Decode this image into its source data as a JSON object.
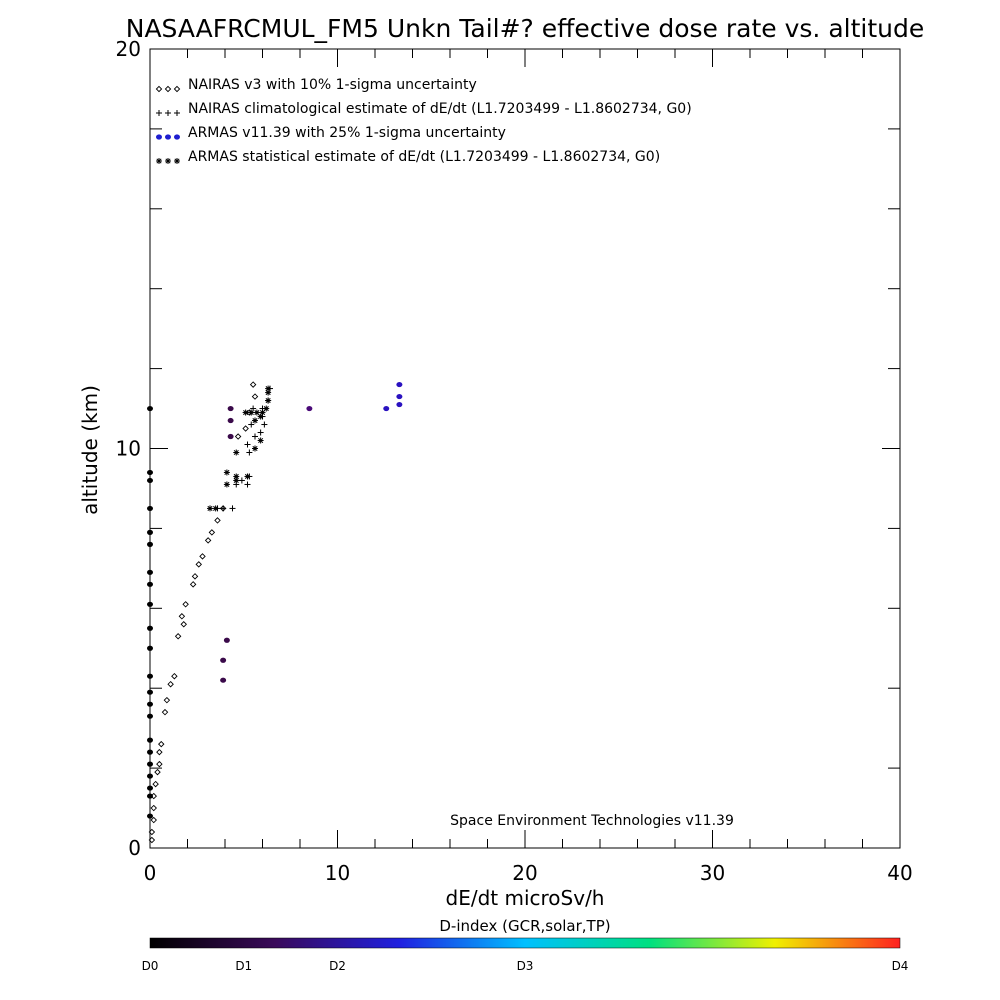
{
  "chart_data": {
    "type": "scatter",
    "title": "NASAAFRCMUL_FM5 Unkn Tail#? effective dose rate vs. altitude",
    "xlabel": "dE/dt microSv/h",
    "ylabel": "altitude (km)",
    "xlim": [
      0,
      40
    ],
    "ylim": [
      0,
      20
    ],
    "x_ticks": [
      0,
      10,
      20,
      30,
      40
    ],
    "y_ticks": [
      0,
      10,
      20
    ],
    "credit": "Space Environment Technologies v11.39",
    "legend_position": "top-left",
    "series": [
      {
        "name": "NAIRAS v3 with 10% 1-sigma uncertainty",
        "marker": "diamond",
        "symbol_text": "◇◇◇",
        "color": "#000000",
        "points": [
          [
            0.1,
            0.2
          ],
          [
            0.1,
            0.4
          ],
          [
            0.2,
            0.7
          ],
          [
            0.2,
            1.0
          ],
          [
            0.2,
            1.3
          ],
          [
            0.3,
            1.6
          ],
          [
            0.4,
            1.9
          ],
          [
            0.5,
            2.1
          ],
          [
            0.5,
            2.4
          ],
          [
            0.6,
            2.6
          ],
          [
            0.8,
            3.4
          ],
          [
            0.9,
            3.7
          ],
          [
            1.1,
            4.1
          ],
          [
            1.3,
            4.3
          ],
          [
            1.5,
            5.3
          ],
          [
            1.8,
            5.6
          ],
          [
            1.7,
            5.8
          ],
          [
            1.9,
            6.1
          ],
          [
            2.3,
            6.6
          ],
          [
            2.4,
            6.8
          ],
          [
            2.6,
            7.1
          ],
          [
            2.8,
            7.3
          ],
          [
            3.1,
            7.7
          ],
          [
            3.3,
            7.9
          ],
          [
            3.6,
            8.2
          ],
          [
            3.9,
            8.5
          ],
          [
            4.7,
            10.3
          ],
          [
            5.1,
            10.5
          ],
          [
            5.3,
            10.9
          ],
          [
            5.6,
            11.3
          ],
          [
            5.5,
            11.6
          ]
        ]
      },
      {
        "name": "NAIRAS climatological estimate of dE/dt (L1.7203499 - L1.8602734, G0)",
        "marker": "plus",
        "symbol_text": "+++",
        "color": "#000000",
        "points": [
          [
            3.6,
            8.5
          ],
          [
            3.9,
            8.5
          ],
          [
            4.4,
            8.5
          ],
          [
            4.6,
            9.1
          ],
          [
            4.9,
            9.2
          ],
          [
            5.2,
            9.1
          ],
          [
            5.3,
            9.3
          ],
          [
            5.3,
            9.9
          ],
          [
            5.2,
            10.1
          ],
          [
            5.6,
            10.3
          ],
          [
            5.9,
            10.4
          ],
          [
            6.1,
            10.6
          ],
          [
            5.4,
            10.6
          ],
          [
            6.0,
            10.8
          ],
          [
            5.5,
            11.0
          ],
          [
            6.0,
            11.0
          ],
          [
            6.3,
            11.2
          ],
          [
            6.4,
            11.5
          ]
        ]
      },
      {
        "name": "ARMAS v11.39 with 25% 1-sigma uncertainty",
        "marker": "filled-circle",
        "symbol_text": "●●●",
        "color": "#1f1fd0",
        "points": [
          [
            0.0,
            0.8
          ],
          [
            0.0,
            1.3
          ],
          [
            0.0,
            1.5
          ],
          [
            0.0,
            1.8
          ],
          [
            0.0,
            2.1
          ],
          [
            0.0,
            2.4
          ],
          [
            0.0,
            2.7
          ],
          [
            0.0,
            3.3
          ],
          [
            0.0,
            3.6
          ],
          [
            0.0,
            3.9
          ],
          [
            0.0,
            4.3
          ],
          [
            0.0,
            5.0
          ],
          [
            0.0,
            5.5
          ],
          [
            0.0,
            6.1
          ],
          [
            0.0,
            6.6
          ],
          [
            0.0,
            6.9
          ],
          [
            0.0,
            7.6
          ],
          [
            0.0,
            7.9
          ],
          [
            0.0,
            8.5
          ],
          [
            0.0,
            9.2
          ],
          [
            0.0,
            9.4
          ],
          [
            0.0,
            11.0
          ],
          [
            3.9,
            4.2
          ],
          [
            3.9,
            4.7
          ],
          [
            4.1,
            5.2
          ],
          [
            4.3,
            10.3
          ],
          [
            4.3,
            10.7
          ],
          [
            4.3,
            11.0
          ],
          [
            8.5,
            11.0
          ],
          [
            12.6,
            11.0
          ],
          [
            13.3,
            11.1
          ],
          [
            13.3,
            11.3
          ],
          [
            13.3,
            11.6
          ]
        ],
        "point_colors": [
          "#000000",
          "#000000",
          "#000000",
          "#000000",
          "#000000",
          "#000000",
          "#000000",
          "#000000",
          "#000000",
          "#000000",
          "#000000",
          "#000000",
          "#000000",
          "#000000",
          "#000000",
          "#000000",
          "#000000",
          "#000000",
          "#000000",
          "#000000",
          "#000000",
          "#000000",
          "#3a0a4a",
          "#3a0a4a",
          "#3a0a4a",
          "#3a0a4a",
          "#3a0a4a",
          "#3a0a4a",
          "#4a0a78",
          "#2a12c0",
          "#2a12c0",
          "#2a12c0",
          "#2a12c0"
        ]
      },
      {
        "name": "ARMAS statistical estimate of dE/dt (L1.7203499 - L1.8602734, G0)",
        "marker": "asterisk",
        "symbol_text": "***",
        "color": "#000000",
        "points": [
          [
            3.2,
            8.5
          ],
          [
            3.5,
            8.5
          ],
          [
            4.1,
            9.1
          ],
          [
            4.1,
            9.4
          ],
          [
            4.6,
            9.2
          ],
          [
            4.6,
            9.3
          ],
          [
            4.6,
            9.9
          ],
          [
            5.2,
            9.3
          ],
          [
            5.6,
            10.0
          ],
          [
            5.9,
            10.2
          ],
          [
            5.6,
            10.7
          ],
          [
            5.9,
            10.8
          ],
          [
            5.1,
            10.9
          ],
          [
            5.4,
            10.9
          ],
          [
            5.7,
            10.9
          ],
          [
            6.0,
            10.9
          ],
          [
            6.2,
            11.0
          ],
          [
            6.3,
            11.2
          ],
          [
            6.3,
            11.4
          ],
          [
            6.3,
            11.5
          ]
        ]
      }
    ],
    "colorbar": {
      "title": "D-index (GCR,solar,TP)",
      "labels": [
        "D0",
        "D1",
        "D2",
        "D3",
        "D4"
      ],
      "label_positions": [
        0,
        0.125,
        0.25,
        0.5,
        1.0
      ],
      "colors": [
        "#000000",
        "#3a0a5a",
        "#2020e0",
        "#00c0ff",
        "#00e080",
        "#f0f000",
        "#ff2020"
      ]
    }
  }
}
